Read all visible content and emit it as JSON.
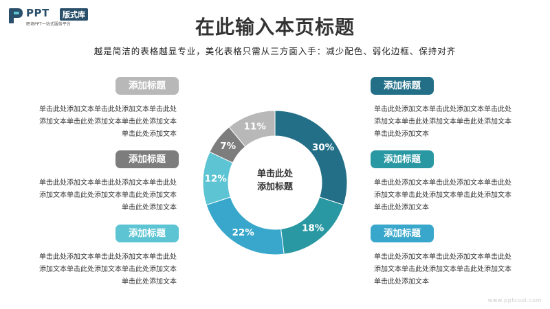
{
  "logo": {
    "brand": "PPT",
    "badge": "版式库",
    "tagline": "职场PPT一站式服务平台"
  },
  "title": "在此输入本页标题",
  "subtitle": "越是简洁的表格越显专业，美化表格只需从三方面入手：减少配色、弱化边框、保持对齐",
  "items": [
    {
      "label": "添加标题",
      "color": "#b8b8b8",
      "lines": [
        "单击此处添加文本单击此处添加文本单击此处",
        "添加文本单击此处添加文本单击此处添加文本",
        "单击此处添加文本"
      ]
    },
    {
      "label": "添加标题",
      "color": "#7d7d7d",
      "lines": [
        "单击此处添加文本单击此处添加文本单击此处",
        "添加文本单击此处添加文本单击此处添加文本",
        "单击此处添加文本"
      ]
    },
    {
      "label": "添加标题",
      "color": "#5cc4d3",
      "lines": [
        "单击此处添加文本单击此处添加文本单击此处",
        "添加文本单击此处添加文本单击此处添加文本",
        "单击此处添加文本"
      ]
    },
    {
      "label": "添加标题",
      "color": "#236f87",
      "lines": [
        "单击此处添加文本单击此处添加文本单击此处",
        "添加文本单击此处添加文本单击此处添加文本",
        "单击此处添加文本"
      ]
    },
    {
      "label": "添加标题",
      "color": "#2998a2",
      "lines": [
        "单击此处添加文本单击此处添加文本单击此处",
        "添加文本单击此处添加文本单击此处添加文本",
        "单击此处添加文本"
      ]
    },
    {
      "label": "添加标题",
      "color": "#38a7cb",
      "lines": [
        "单击此处添加文本单击此处添加文本单击此处",
        "添加文本单击此处添加文本单击此处添加文本",
        "单击此处添加文本"
      ]
    }
  ],
  "center_label": [
    "单击此处",
    "添加标题"
  ],
  "watermark": "www.pptcool.com",
  "chart_data": {
    "type": "pie",
    "variant": "donut",
    "values": [
      30,
      18,
      22,
      12,
      7,
      11
    ],
    "labels": [
      "30%",
      "18%",
      "22%",
      "12%",
      "7%",
      "11%"
    ],
    "colors": [
      "#236f87",
      "#2998a2",
      "#38a7cb",
      "#5cc4d3",
      "#7d7d7d",
      "#b8b8b8"
    ],
    "start": "top, clockwise"
  }
}
